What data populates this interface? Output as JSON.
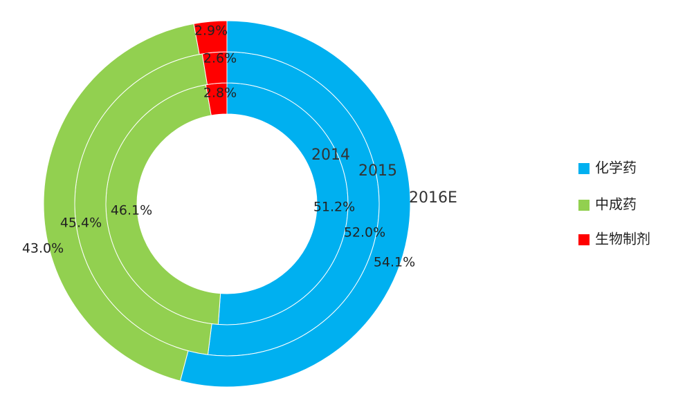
{
  "chart_data": {
    "type": "donut",
    "categories": [
      "化学药",
      "中成药",
      "生物制剂"
    ],
    "colors": [
      "#00b0f0",
      "#92d050",
      "#ff0000"
    ],
    "series": [
      {
        "name": "2014",
        "values": [
          51.2,
          46.1,
          2.8
        ],
        "value_labels": [
          "51.2%",
          "46.1%",
          "2.8%"
        ]
      },
      {
        "name": "2015",
        "values": [
          52.0,
          45.4,
          2.6
        ],
        "value_labels": [
          "52.0%",
          "45.4%",
          "2.6%"
        ]
      },
      {
        "name": "2016E",
        "values": [
          54.1,
          43.0,
          2.9
        ],
        "value_labels": [
          "54.1%",
          "43.0%",
          "2.9%"
        ]
      }
    ],
    "legend": "right"
  }
}
